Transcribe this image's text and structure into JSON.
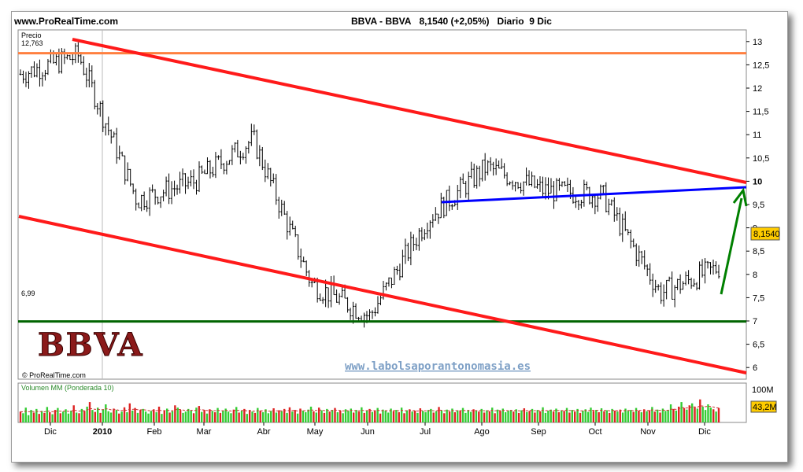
{
  "header": {
    "site": "www.ProRealTime.com",
    "ticker": "BBVA - BBVA",
    "price": "8,1540 (+2,05%)",
    "period": "Diario",
    "date": "9 Dic"
  },
  "watermark": {
    "logo_text": "BBVA",
    "copyright": "© ProRealTime.com",
    "url": "www.labolsaporantonomasia.es"
  },
  "colors": {
    "trend_channel": "#ff1a1a",
    "resistance": "#ff7f3f",
    "support": "#006400",
    "blue_trend": "#0000ff",
    "arrow": "#008000",
    "price_badge": "#ffcc00",
    "volume_up": "#33cc33",
    "volume_down": "#dd2222"
  },
  "chart_data": [
    {
      "type": "line",
      "title": "BBVA - BBVA 8,1540 (+2,05%) Diario 9 Dic",
      "ylabel": "Precio",
      "ylim": [
        5.75,
        13.1
      ],
      "yticks": [
        "13",
        "12,5",
        "12",
        "11,5",
        "11",
        "10,5",
        "10",
        "9,5",
        "9",
        "8,5",
        "8",
        "7,5",
        "7",
        "6,5",
        "6"
      ],
      "xticks": [
        "Dic",
        "2010",
        "Feb",
        "Mar",
        "Abr",
        "May",
        "Jun",
        "Jul",
        "Ago",
        "Sep",
        "Oct",
        "Nov",
        "Dic"
      ],
      "last_price_label": "8,1540",
      "max_label": "12,763",
      "min_label": "6,99",
      "series": [
        {
          "x": [
            "Dic",
            "Ene",
            "Feb",
            "Mar",
            "Abr",
            "May",
            "Jun",
            "Jul",
            "Ago",
            "Sep",
            "Oct",
            "Nov",
            "Dic"
          ],
          "values": [
            12.3,
            12.7,
            9.6,
            10.0,
            10.9,
            7.8,
            7.1,
            9.2,
            10.3,
            9.8,
            9.7,
            7.6,
            8.15
          ]
        }
      ],
      "annotations": [
        {
          "label": "resistance",
          "value": 12.75
        },
        {
          "label": "support",
          "value": 6.99
        },
        {
          "label": "upper channel",
          "from": [
            "Dic",
            12.95
          ],
          "to": [
            "Dic",
            9.2
          ]
        },
        {
          "label": "lower channel",
          "from": [
            "Dic",
            8.5
          ],
          "to": [
            "Dic",
            5.8
          ]
        },
        {
          "label": "blue trend",
          "from": [
            "Jul",
            8.85
          ],
          "to": [
            "Dic",
            9.15
          ]
        },
        {
          "label": "arrow",
          "from": [
            "Dic",
            7.0
          ],
          "to": [
            "Dic",
            9.15
          ]
        }
      ],
      "grid": true
    },
    {
      "type": "bar",
      "title": "Volumen MM (Ponderada 10)",
      "yticks": [
        "100M"
      ],
      "last_value_label": "43,2M",
      "ylim": [
        0,
        110
      ],
      "values": [
        33,
        28,
        45,
        22,
        38,
        30,
        41,
        26,
        35,
        29,
        47,
        31,
        25,
        38,
        44,
        28,
        33,
        40,
        27,
        36,
        52,
        30,
        28,
        41,
        35,
        48,
        62,
        38,
        32,
        45,
        29,
        40,
        55,
        34,
        30,
        42,
        38,
        27,
        33,
        46,
        31,
        58,
        36,
        44,
        29,
        38,
        41,
        33,
        27,
        35,
        40,
        31,
        48,
        26,
        37,
        42,
        30,
        34,
        52,
        45,
        38,
        29,
        33,
        41,
        36,
        28,
        45,
        50,
        32,
        38,
        27,
        40,
        35,
        31,
        44,
        29,
        36,
        42,
        33,
        28,
        39,
        47,
        30,
        35,
        41,
        26,
        38,
        33,
        29,
        44,
        36,
        31,
        40,
        28,
        35,
        43,
        30,
        37,
        34,
        41,
        29,
        46,
        33,
        38,
        27,
        42,
        36,
        31,
        39,
        48,
        34,
        30,
        45,
        37,
        29,
        41,
        33,
        38,
        44,
        31,
        36,
        28,
        40,
        35,
        42,
        30,
        38,
        33,
        46,
        29,
        37,
        41,
        32,
        35,
        44,
        27,
        39,
        36,
        30,
        42,
        34,
        38,
        31,
        45,
        28,
        37,
        40,
        33,
        36,
        29,
        43,
        35,
        31,
        38,
        41,
        30,
        34,
        47,
        36,
        28,
        39,
        33,
        42,
        31,
        37,
        35,
        44,
        29,
        38,
        32,
        40,
        36,
        33,
        41,
        30,
        37,
        34,
        45,
        28,
        39,
        35,
        42,
        31,
        36,
        38,
        33,
        40,
        29,
        37,
        43,
        32,
        35,
        41,
        30,
        38,
        34,
        46,
        29,
        36,
        39,
        33,
        42,
        31,
        37,
        35,
        44,
        30,
        38,
        33,
        41,
        29,
        36,
        40,
        32,
        45,
        35,
        38,
        31,
        43,
        34,
        37,
        29,
        41,
        36,
        33,
        39,
        30,
        42,
        35,
        38,
        32,
        44,
        36,
        31,
        40,
        34,
        37,
        47,
        33,
        39,
        30,
        42,
        35,
        38,
        55,
        41,
        36,
        48,
        62,
        44,
        39,
        52,
        58,
        46,
        42,
        70,
        48,
        38,
        55,
        45,
        40,
        33,
        44
      ],
      "up_pattern": "alternating"
    }
  ]
}
